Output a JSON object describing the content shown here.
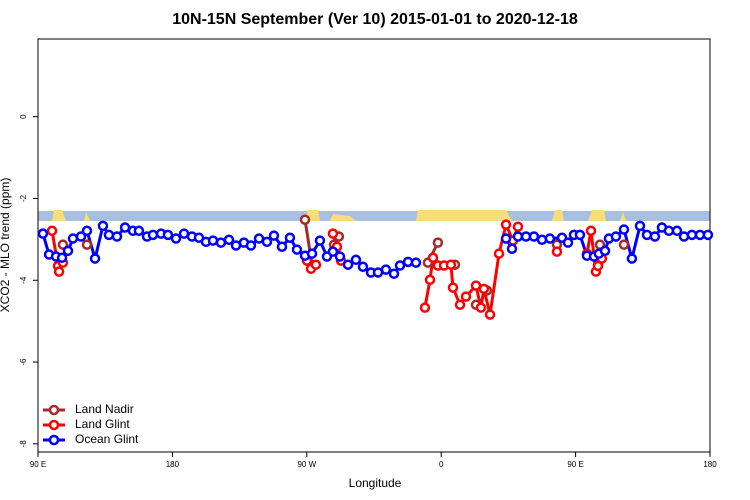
{
  "chart_data": {
    "type": "line",
    "title": "10N-15N September (Ver 10)   2015-01-01 to 2020-12-18",
    "x_label": "Longitude",
    "y_label": "XCO2 - MLO trend (ppm)",
    "xlim": [
      90,
      540
    ],
    "ylim": [
      -8.2,
      1.9
    ],
    "xticks": [
      {
        "value": 90,
        "label": "90 E"
      },
      180,
      {
        "value": 270,
        "label": "90 W"
      },
      {
        "value": 360,
        "label": "0"
      },
      {
        "value": 450,
        "label": "90 E"
      },
      {
        "value": 540,
        "label": "180"
      }
    ],
    "yticks": [
      0,
      -2,
      -4,
      -6,
      -8
    ],
    "legend": "bottom-left",
    "series": [
      {
        "name": "Land Nadir",
        "color": "#a52a2a",
        "x": [
          106.7,
          null,
          122.8,
          null,
          268.8,
          273.5,
          null,
          288.2,
          291.5,
          null,
          351.1,
          357.8,
          null,
          369.2,
          null,
          383.3,
          null,
          390.6,
          null,
          437.5,
          null,
          465.0,
          466.3,
          null,
          482.4
        ],
        "values": [
          -3.13,
          null,
          -3.13,
          null,
          -2.52,
          -3.62,
          null,
          -3.13,
          -2.93,
          null,
          -3.57,
          -3.08,
          null,
          -3.62,
          null,
          -4.6,
          null,
          -4.25,
          null,
          -3.13,
          null,
          -3.62,
          -3.13,
          null,
          -3.13
        ]
      },
      {
        "name": "Land Glint",
        "color": "#ff0000",
        "x": [
          99.4,
          103.4,
          104.1,
          106.7,
          null,
          270.1,
          272.8,
          276.1,
          null,
          287.5,
          290.2,
          292.9,
          null,
          349.1,
          352.5,
          354.5,
          357.8,
          361.9,
          366.5,
          367.9,
          372.6,
          376.6,
          383.3,
          386.6,
          388.6,
          392.7,
          398.7,
          403.4,
          408.1,
          411.4,
          null,
          437.5,
          null,
          457.6,
          460.3,
          463.6,
          465.0,
          467.6
        ],
        "values": [
          -2.79,
          -3.65,
          -3.79,
          -3.57,
          null,
          -3.52,
          -3.72,
          -3.62,
          null,
          -2.86,
          -3.18,
          -3.52,
          null,
          -4.67,
          -3.99,
          -3.45,
          -3.64,
          -3.64,
          -3.62,
          -4.18,
          -4.6,
          -4.4,
          -4.13,
          -4.67,
          -4.21,
          -4.84,
          -3.35,
          -2.64,
          -3.03,
          -2.69,
          null,
          -3.3,
          null,
          -3.35,
          -2.79,
          -3.79,
          -3.65,
          -3.47
        ]
      },
      {
        "name": "Ocean Glint",
        "color": "#0000ff",
        "x": [
          93.3,
          97.4,
          102.1,
          106.1,
          110.1,
          113.4,
          118.8,
          122.8,
          128.2,
          133.5,
          137.5,
          142.9,
          148.3,
          153.6,
          157.6,
          163.0,
          167.0,
          172.4,
          177.0,
          182.4,
          187.8,
          193.1,
          197.8,
          202.5,
          207.2,
          212.5,
          217.9,
          222.6,
          227.9,
          232.6,
          238.0,
          243.3,
          248.0,
          253.4,
          258.7,
          263.4,
          268.8,
          273.5,
          278.8,
          283.5,
          287.5,
          292.2,
          297.6,
          302.9,
          307.6,
          313.0,
          317.7,
          323.0,
          328.4,
          332.4,
          337.8,
          343.1,
          null,
          403.4,
          407.4,
          411.4,
          416.8,
          422.1,
          427.5,
          432.8,
          440.9,
          444.9,
          448.9,
          452.9,
          457.6,
          462.3,
          465.6,
          469.7,
          472.3,
          477.0,
          482.4,
          487.7,
          493.1,
          497.8,
          503.1,
          507.8,
          512.5,
          517.9,
          522.6,
          527.9,
          533.3,
          538.6
        ],
        "values": [
          -2.86,
          -3.37,
          -3.42,
          -3.45,
          -3.28,
          -2.98,
          -2.93,
          -2.79,
          -3.47,
          -2.67,
          -2.89,
          -2.93,
          -2.71,
          -2.79,
          -2.79,
          -2.93,
          -2.89,
          -2.86,
          -2.89,
          -2.98,
          -2.86,
          -2.93,
          -2.96,
          -3.06,
          -3.03,
          -3.08,
          -3.01,
          -3.15,
          -3.08,
          -3.15,
          -2.98,
          -3.06,
          -2.91,
          -3.18,
          -2.96,
          -3.25,
          -3.4,
          -3.35,
          -3.03,
          -3.42,
          -3.3,
          -3.42,
          -3.62,
          -3.5,
          -3.67,
          -3.81,
          -3.81,
          -3.74,
          -3.84,
          -3.64,
          -3.55,
          -3.57,
          null,
          -2.98,
          -3.23,
          -2.93,
          -2.93,
          -2.93,
          -3.01,
          -2.98,
          -2.96,
          -3.08,
          -2.89,
          -2.89,
          -3.4,
          -3.42,
          -3.35,
          -3.28,
          -2.98,
          -2.93,
          -2.76,
          -3.47,
          -2.67,
          -2.89,
          -2.93,
          -2.71,
          -2.79,
          -2.79,
          -2.93,
          -2.89,
          -2.89,
          -2.89
        ]
      }
    ]
  }
}
